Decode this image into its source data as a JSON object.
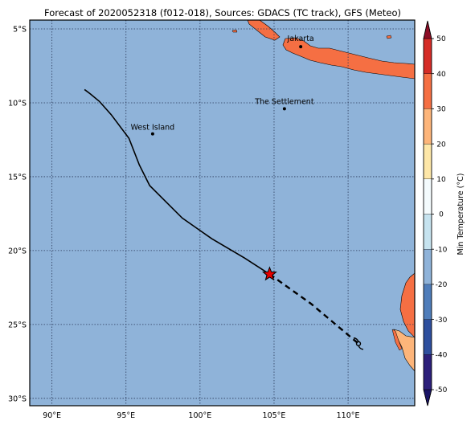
{
  "map": {
    "title": "Forecast of 2020052318 (f012-018), Sources: GDACS (TC track), GFS (Meteo)",
    "lon_range": [
      88.5,
      114.5
    ],
    "lat_range": [
      -30.5,
      -4.4
    ],
    "lon_ticks": [
      {
        "value": 90,
        "label": "90°E"
      },
      {
        "value": 95,
        "label": "95°E"
      },
      {
        "value": 100,
        "label": "100°E"
      },
      {
        "value": 105,
        "label": "105°E"
      },
      {
        "value": 110,
        "label": "110°E"
      }
    ],
    "lat_ticks": [
      {
        "value": -5,
        "label": "5°S"
      },
      {
        "value": -10,
        "label": "10°S"
      },
      {
        "value": -15,
        "label": "15°S"
      },
      {
        "value": -20,
        "label": "20°S"
      },
      {
        "value": -25,
        "label": "25°S"
      },
      {
        "value": -30,
        "label": "30°S"
      }
    ],
    "gridlines": "dotted",
    "colors": {
      "ocean": "#8fb3d9",
      "land": "#f56f43",
      "land_cool": "#fdb57a",
      "track": "#000000",
      "current_position": "#e60000"
    },
    "places": [
      {
        "name": "Jakarta",
        "lon": 106.8,
        "lat": -6.2
      },
      {
        "name": "The Settlement",
        "lon": 105.7,
        "lat": -10.4
      },
      {
        "name": "West Island",
        "lon": 96.8,
        "lat": -12.1
      }
    ],
    "past_track": [
      {
        "lon": 92.2,
        "lat": -9.1
      },
      {
        "lon": 92.6,
        "lat": -9.4
      },
      {
        "lon": 93.2,
        "lat": -9.9
      },
      {
        "lon": 94.0,
        "lat": -10.8
      },
      {
        "lon": 95.2,
        "lat": -12.4
      },
      {
        "lon": 95.9,
        "lat": -14.2
      },
      {
        "lon": 96.6,
        "lat": -15.6
      },
      {
        "lon": 98.8,
        "lat": -17.8
      },
      {
        "lon": 100.8,
        "lat": -19.2
      },
      {
        "lon": 103.0,
        "lat": -20.5
      },
      {
        "lon": 104.7,
        "lat": -21.6
      }
    ],
    "current_position": {
      "lon": 104.7,
      "lat": -21.6,
      "marker": "star"
    },
    "forecast_track": [
      {
        "lon": 104.7,
        "lat": -21.6
      },
      {
        "lon": 107.5,
        "lat": -23.6
      },
      {
        "lon": 109.4,
        "lat": -25.2
      },
      {
        "lon": 110.7,
        "lat": -26.3
      }
    ],
    "forecast_position": {
      "lon": 110.7,
      "lat": -26.3,
      "marker": "tropical-cyclone-icon"
    }
  },
  "colorbar": {
    "label": "Min Temperature (°C)",
    "min": -50,
    "max": 50,
    "ticks": [
      50,
      40,
      30,
      20,
      10,
      0,
      -10,
      -20,
      -30,
      -40,
      -50
    ],
    "extend": "both",
    "bins": [
      {
        "from": -50,
        "to": -40,
        "color": "#2c1f7a"
      },
      {
        "from": -40,
        "to": -30,
        "color": "#2e4f9e"
      },
      {
        "from": -30,
        "to": -20,
        "color": "#4f7dba"
      },
      {
        "from": -20,
        "to": -10,
        "color": "#8fb3d9"
      },
      {
        "from": -10,
        "to": 0,
        "color": "#c6e3ef"
      },
      {
        "from": 0,
        "to": 10,
        "color": "#f4fbfd"
      },
      {
        "from": 10,
        "to": 20,
        "color": "#fee7a8"
      },
      {
        "from": 20,
        "to": 30,
        "color": "#fdb57a"
      },
      {
        "from": 30,
        "to": 40,
        "color": "#f56f43"
      },
      {
        "from": 40,
        "to": 50,
        "color": "#d52c27"
      }
    ],
    "under_color": "#1a1466",
    "over_color": "#8c0d26"
  }
}
